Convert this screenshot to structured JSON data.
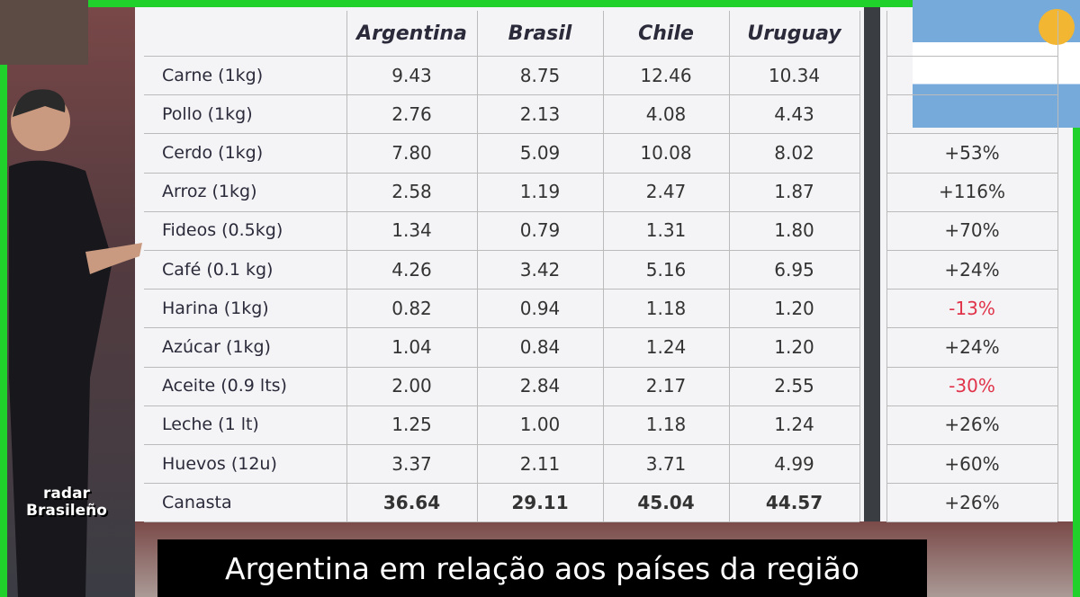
{
  "table": {
    "header": [
      "Argentina",
      "Brasil",
      "Chile",
      "Uruguay"
    ],
    "rows": [
      [
        "Carne (1kg)",
        "9.43",
        "8.75",
        "12.46",
        "10.34"
      ],
      [
        "Pollo (1kg)",
        "2.76",
        "2.13",
        "4.08",
        "4.43"
      ],
      [
        "Cerdo (1kg)",
        "7.80",
        "5.09",
        "10.08",
        "8.02",
        "+53%"
      ],
      [
        "Arroz (1kg)",
        "2.58",
        "1.19",
        "2.47",
        "1.87",
        "+116%"
      ],
      [
        "Fideos (0.5kg)",
        "1.34",
        "0.79",
        "1.31",
        "1.80",
        "+70%"
      ],
      [
        "Café (0.1 kg)",
        "4.26",
        "3.42",
        "5.16",
        "6.95",
        "+24%"
      ],
      [
        "Harina (1kg)",
        "0.82",
        "0.94",
        "1.18",
        "1.20",
        "-13%"
      ],
      [
        "Azúcar (1kg)",
        "1.04",
        "0.84",
        "1.24",
        "1.20",
        "+24%"
      ],
      [
        "Aceite (0.9 lts)",
        "2.00",
        "2.84",
        "2.17",
        "2.55",
        "-30%"
      ],
      [
        "Leche (1 lt)",
        "1.25",
        "1.00",
        "1.18",
        "1.24",
        "+26%"
      ],
      [
        "Huevos (12u)",
        "3.37",
        "2.11",
        "3.71",
        "4.99",
        "+60%"
      ],
      [
        "Canasta",
        "36.64",
        "29.11",
        "45.04",
        "44.57",
        "+26%"
      ]
    ]
  },
  "logo": [
    "radar",
    "Brasileño"
  ],
  "caption": "Argentina em relação aos países da região"
}
